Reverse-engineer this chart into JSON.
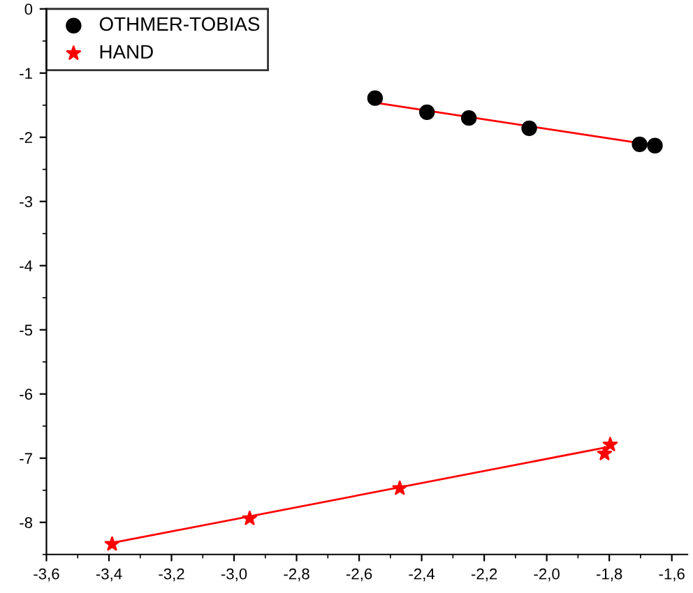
{
  "chart_data": {
    "type": "scatter",
    "legend": "top left",
    "grid": false,
    "xlim": [
      -3.6,
      -1.55
    ],
    "ylim": [
      -8.5,
      0
    ],
    "xticks": [
      {
        "value": -3.6,
        "label": "-3,6"
      },
      {
        "value": -3.4,
        "label": "-3,4"
      },
      {
        "value": -3.2,
        "label": "-3,2"
      },
      {
        "value": -3.0,
        "label": "-3,0"
      },
      {
        "value": -2.8,
        "label": "-2,8"
      },
      {
        "value": -2.6,
        "label": "-2,6"
      },
      {
        "value": -2.4,
        "label": "-2,4"
      },
      {
        "value": -2.2,
        "label": "-2,2"
      },
      {
        "value": -2.0,
        "label": "-2,0"
      },
      {
        "value": -1.8,
        "label": "-1,8"
      },
      {
        "value": -1.6,
        "label": "-1,6"
      }
    ],
    "yticks": [
      0,
      -1,
      -2,
      -3,
      -4,
      -5,
      -6,
      -7,
      -8
    ],
    "series": [
      {
        "name": "OTHMER-TOBIAS",
        "marker": "circle",
        "color": "#000000",
        "x": [
          -2.549,
          -2.383,
          -2.249,
          -2.056,
          -1.703,
          -1.654
        ],
        "values": [
          -1.39,
          -1.61,
          -1.7,
          -1.86,
          -2.11,
          -2.13
        ]
      },
      {
        "name": "HAND",
        "marker": "star",
        "color": "#ff0000",
        "x": [
          -3.39,
          -2.95,
          -2.47,
          -1.815,
          -1.797
        ],
        "values": [
          -8.34,
          -7.94,
          -7.47,
          -6.93,
          -6.79
        ]
      },
      {
        "type": "line",
        "color": "#ff0000",
        "x": [
          -2.55,
          -1.65
        ],
        "values": [
          -1.46,
          -2.13
        ]
      },
      {
        "type": "line",
        "color": "#ff0000",
        "x": [
          -3.39,
          -1.797
        ],
        "values": [
          -8.32,
          -6.82
        ]
      }
    ]
  }
}
